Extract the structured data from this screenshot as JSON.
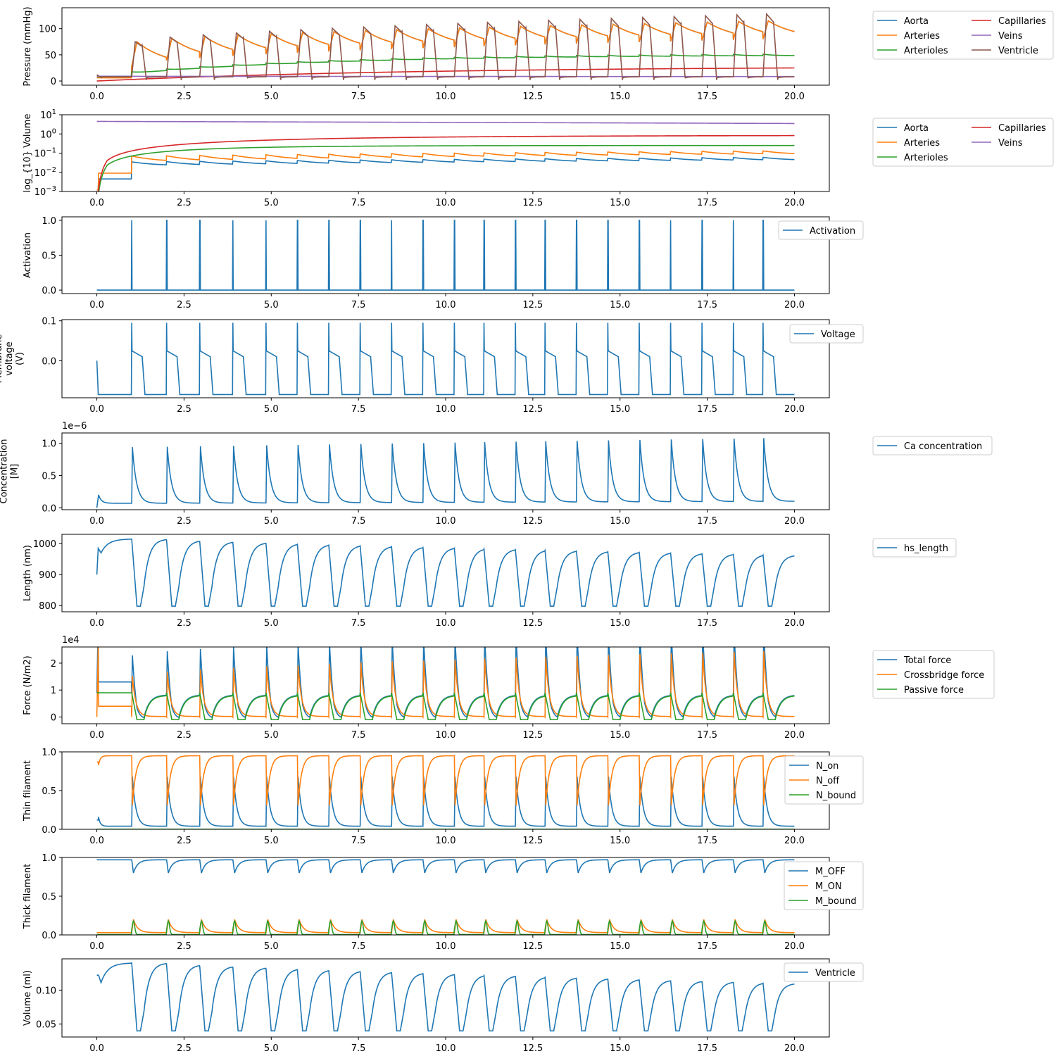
{
  "figure": {
    "background": "#ffffff"
  },
  "chart_data": [
    {
      "type": "line",
      "ylabel": "Pressure (mmHg)",
      "xlim": [
        -1.0,
        21.0
      ],
      "ylim": [
        -8,
        140
      ],
      "xticks": [
        "0.0",
        "2.5",
        "5.0",
        "7.5",
        "10.0",
        "12.5",
        "15.0",
        "17.5",
        "20.0"
      ],
      "yticks": [
        0,
        50,
        100
      ],
      "legend": {
        "position": "outside-right",
        "columns": 2
      },
      "series": [
        {
          "name": "Aorta",
          "color": "#1f77b4",
          "signal": "pressure_aorta"
        },
        {
          "name": "Arteries",
          "color": "#ff7f0e",
          "signal": "pressure_arteries"
        },
        {
          "name": "Arterioles",
          "color": "#2ca02c",
          "signal": "pressure_arterioles"
        },
        {
          "name": "Capillaries",
          "color": "#d62728",
          "signal": "pressure_capillaries"
        },
        {
          "name": "Veins",
          "color": "#9467bd",
          "signal": "pressure_veins"
        },
        {
          "name": "Ventricle",
          "color": "#8c564b",
          "signal": "pressure_ventricle"
        }
      ],
      "notes": "Aorta ~ Arteries; both peak ~75 at t=1 rising to ~115 at t=19, decaying to ~77 at t=20; Arterioles rise to ~50; Capillaries ~0 to ~27; Veins ~9; Ventricle peaks ~75 to ~128"
    },
    {
      "type": "line",
      "ylabel": "log_{10} Volume",
      "yscale": "log",
      "xlim": [
        -1.0,
        21.0
      ],
      "ylim": [
        0.001,
        10
      ],
      "xticks": [
        "0.0",
        "2.5",
        "5.0",
        "7.5",
        "10.0",
        "12.5",
        "15.0",
        "17.5",
        "20.0"
      ],
      "yticks": [
        0.001,
        0.01,
        0.1,
        1,
        10
      ],
      "yticklabels": [
        {
          "b": "10",
          "e": "−3"
        },
        {
          "b": "10",
          "e": "−2"
        },
        {
          "b": "10",
          "e": "−1"
        },
        {
          "b": "10",
          "e": "0"
        },
        {
          "b": "10",
          "e": "1"
        }
      ],
      "legend": {
        "position": "outside-right",
        "columns": 2
      },
      "series": [
        {
          "name": "Aorta",
          "color": "#1f77b4",
          "signal": "volume_aorta"
        },
        {
          "name": "Arteries",
          "color": "#ff7f0e",
          "signal": "volume_arteries"
        },
        {
          "name": "Arterioles",
          "color": "#2ca02c",
          "signal": "volume_arterioles"
        },
        {
          "name": "Capillaries",
          "color": "#d62728",
          "signal": "volume_capillaries"
        },
        {
          "name": "Veins",
          "color": "#9467bd",
          "signal": "volume_veins"
        }
      ],
      "notes": "Veins ~4.5 decreasing to ~3.5; Capillaries rise to ~0.8; Arterioles ~0.25; Arteries ~0.1 oscillating; Aorta ~0.04 oscillating"
    },
    {
      "type": "line",
      "ylabel": "Activation",
      "xlim": [
        -1.0,
        21.0
      ],
      "ylim": [
        -0.05,
        1.05
      ],
      "xticks": [
        "0.0",
        "2.5",
        "5.0",
        "7.5",
        "10.0",
        "12.5",
        "15.0",
        "17.5",
        "20.0"
      ],
      "yticks": [
        0.0,
        0.5,
        1.0
      ],
      "yticklabels": [
        "0.0",
        "0.5",
        "1.0"
      ],
      "legend": {
        "position": "upper-right"
      },
      "series": [
        {
          "name": "Activation",
          "color": "#1f77b4",
          "signal": "activation"
        }
      ],
      "notes": "Spikes to 1.0 at each beat"
    },
    {
      "type": "line",
      "ylabel": [
        "Membrane",
        "voltage",
        "(V)"
      ],
      "xlim": [
        -1.0,
        21.0
      ],
      "ylim": [
        -0.093,
        0.103
      ],
      "xticks": [
        "0.0",
        "2.5",
        "5.0",
        "7.5",
        "10.0",
        "12.5",
        "15.0",
        "17.5",
        "20.0"
      ],
      "yticks": [
        0.0,
        0.1
      ],
      "yticklabels": [
        "0.0",
        "0.1"
      ],
      "legend": {
        "position": "upper-right"
      },
      "series": [
        {
          "name": "Voltage",
          "color": "#1f77b4",
          "signal": "voltage"
        }
      ],
      "notes": "Rest ~ -0.085 V, upstroke to ~0.095 V, plateau ~0.02 V"
    },
    {
      "type": "line",
      "ylabel": [
        "Concentration",
        "[M]"
      ],
      "offset_text": "1e−6",
      "xlim": [
        -1.0,
        21.0
      ],
      "ylim": [
        -0.03,
        1.16
      ],
      "xticks": [
        "0.0",
        "2.5",
        "5.0",
        "7.5",
        "10.0",
        "12.5",
        "15.0",
        "17.5",
        "20.0"
      ],
      "yticks": [
        0.0,
        0.5,
        1.0
      ],
      "yticklabels": [
        "0.0",
        "0.5",
        "1.0"
      ],
      "legend": {
        "position": "outside-right"
      },
      "series": [
        {
          "name": "Ca concentration",
          "color": "#1f77b4",
          "signal": "calcium"
        }
      ],
      "notes": "Values in units of 1e-6 M; peaks ~0.94 rising to ~1.08, baseline ~0.07 to ~0.1"
    },
    {
      "type": "line",
      "ylabel": "Length (nm)",
      "xlim": [
        -1.0,
        21.0
      ],
      "ylim": [
        780,
        1030
      ],
      "xticks": [
        "0.0",
        "2.5",
        "5.0",
        "7.5",
        "10.0",
        "12.5",
        "15.0",
        "17.5",
        "20.0"
      ],
      "yticks": [
        800,
        900,
        1000
      ],
      "legend": {
        "position": "outside-right"
      },
      "series": [
        {
          "name": "hs_length",
          "color": "#1f77b4",
          "signal": "hs_length"
        }
      ],
      "notes": "Starts 900, jumps to ~985, plateaus ~1015 then drops to ~800 each beat; peaks decline to ~963"
    },
    {
      "type": "line",
      "ylabel": "Force (N/m2)",
      "offset_text": "1e4",
      "xlim": [
        -1.0,
        21.0
      ],
      "ylim": [
        -0.25,
        2.6
      ],
      "xticks": [
        "0.0",
        "2.5",
        "5.0",
        "7.5",
        "10.0",
        "12.5",
        "15.0",
        "17.5",
        "20.0"
      ],
      "yticks": [
        0,
        1,
        2
      ],
      "legend": {
        "position": "outside-right"
      },
      "series": [
        {
          "name": "Total force",
          "color": "#1f77b4",
          "signal": "force_total"
        },
        {
          "name": "Crossbridge force",
          "color": "#ff7f0e",
          "signal": "force_crossbridge"
        },
        {
          "name": "Passive force",
          "color": "#2ca02c",
          "signal": "force_passive"
        }
      ],
      "notes": "Values in units of 1e4 N/m2; peaks ~1.5 rising to ~2.45"
    },
    {
      "type": "line",
      "ylabel": "Thin filament",
      "xlim": [
        -1.0,
        21.0
      ],
      "ylim": [
        0.0,
        1.0
      ],
      "xticks": [
        "0.0",
        "2.5",
        "5.0",
        "7.5",
        "10.0",
        "12.5",
        "15.0",
        "17.5",
        "20.0"
      ],
      "yticks": [
        0.0,
        0.5,
        1.0
      ],
      "yticklabels": [
        "0.0",
        "0.5",
        "1.0"
      ],
      "legend": {
        "position": "upper-right"
      },
      "series": [
        {
          "name": "N_on",
          "color": "#1f77b4",
          "signal": "n_on"
        },
        {
          "name": "N_off",
          "color": "#ff7f0e",
          "signal": "n_off"
        },
        {
          "name": "N_bound",
          "color": "#2ca02c",
          "signal": "n_bound"
        }
      ],
      "notes": "N_off ~0.97 dipping to ~0.32; N_on ~0.04 peaking ~0.68; N_bound ~0"
    },
    {
      "type": "line",
      "ylabel": "Thick filament",
      "xlim": [
        -1.0,
        21.0
      ],
      "ylim": [
        0.0,
        1.0
      ],
      "xticks": [
        "0.0",
        "2.5",
        "5.0",
        "7.5",
        "10.0",
        "12.5",
        "15.0",
        "17.5",
        "20.0"
      ],
      "yticks": [
        0.0,
        0.5,
        1.0
      ],
      "yticklabels": [
        "0.0",
        "0.5",
        "1.0"
      ],
      "legend": {
        "position": "upper-right"
      },
      "series": [
        {
          "name": "M_OFF",
          "color": "#1f77b4",
          "signal": "m_off"
        },
        {
          "name": "M_ON",
          "color": "#ff7f0e",
          "signal": "m_on"
        },
        {
          "name": "M_bound",
          "color": "#2ca02c",
          "signal": "m_bound"
        }
      ],
      "notes": "M_OFF ~0.97 dipping to ~0.75; M_ON ~0.03 peaking ~0.2; M_bound peaks ~0.18"
    },
    {
      "type": "line",
      "ylabel": "Volume (ml)",
      "xlim": [
        -1.0,
        21.0
      ],
      "ylim": [
        0.031,
        0.146
      ],
      "xticks": [
        "0.0",
        "2.5",
        "5.0",
        "7.5",
        "10.0",
        "12.5",
        "15.0",
        "17.5",
        "20.0"
      ],
      "yticks": [
        0.05,
        0.1
      ],
      "yticklabels": [
        "0.05",
        "0.10"
      ],
      "legend": {
        "position": "upper-right"
      },
      "series": [
        {
          "name": "Ventricle",
          "color": "#1f77b4",
          "signal": "ventricle_volume"
        }
      ],
      "notes": "Start ~0.122, plateau ~0.14 then drops to ~0.04 each beat; peaks decline to ~0.11"
    }
  ]
}
